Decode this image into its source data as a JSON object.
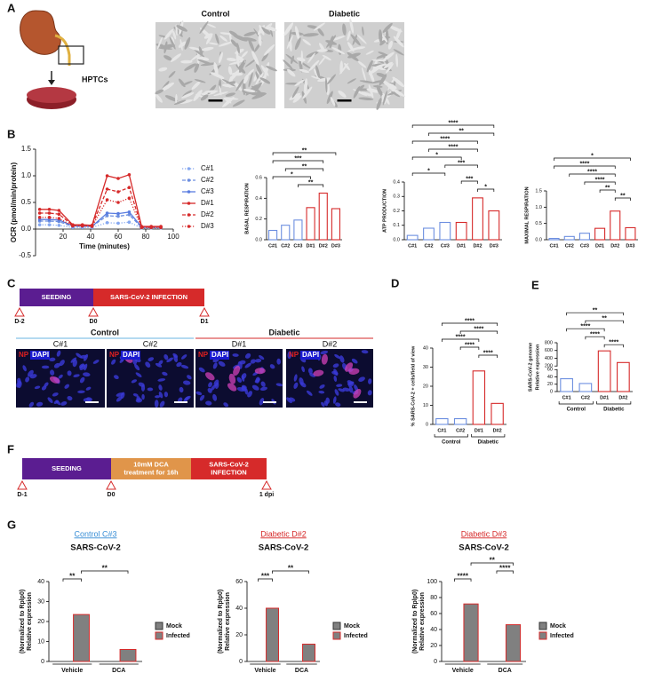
{
  "panel_labels": [
    "A",
    "B",
    "C",
    "D",
    "E",
    "F",
    "G"
  ],
  "panel_a": {
    "image_labels": [
      "Control",
      "Diabetic"
    ],
    "cell_label": "HPTCs"
  },
  "timeline_c": {
    "stages": [
      [
        "SEEDING"
      ],
      [
        "SARS-CoV-2 INFECTION"
      ]
    ],
    "days": [
      "D-2",
      "D0",
      "D1"
    ],
    "colors": [
      "#5b1d91",
      "#d62a2a"
    ]
  },
  "panel_c": {
    "groups": [
      "Control",
      "Diabetic"
    ],
    "fields": [
      "C#1",
      "C#2",
      "D#1",
      "D#2"
    ],
    "stain_labels": [
      "NP",
      "DAPI"
    ]
  },
  "timeline_f": {
    "stages": [
      [
        "SEEDING"
      ],
      [
        "10mM DCA",
        "treatment for 16h"
      ],
      [
        "SARS-CoV-2",
        "INFECTION"
      ]
    ],
    "days": [
      "D-1",
      "D0",
      "1 dpi"
    ],
    "colors": [
      "#5b1d91",
      "#e0954a",
      "#d62a2a"
    ]
  },
  "chart_data": [
    {
      "type": "line",
      "x_label": "Time (minutes)",
      "y_label": "OCR (pmol/min/protein)",
      "x": [
        3,
        10,
        17,
        27,
        34,
        41,
        52,
        60,
        68,
        77,
        84,
        91
      ],
      "xlim": [
        0,
        100
      ],
      "xticks": [
        20,
        40,
        60,
        80,
        100
      ],
      "ylim": [
        -0.5,
        1.5
      ],
      "yticks": [
        {
          "value": -0.5,
          "label": "-0.5"
        },
        {
          "value": 0,
          "label": "0.0"
        },
        {
          "value": 0.5,
          "label": "0.5"
        },
        {
          "value": 1,
          "label": "1.0"
        },
        {
          "value": 1.5,
          "label": "1.5"
        }
      ],
      "series": [
        {
          "name": "C#1",
          "color": "#86a8f0",
          "style": "dotted",
          "values": [
            0.08,
            0.08,
            0.07,
            0.03,
            0.03,
            0.03,
            0.12,
            0.11,
            0.13,
            0.02,
            0.02,
            0.02
          ]
        },
        {
          "name": "C#2",
          "color": "#6d8fe0",
          "style": "dashed",
          "values": [
            0.15,
            0.15,
            0.14,
            0.05,
            0.05,
            0.05,
            0.25,
            0.24,
            0.27,
            0.03,
            0.03,
            0.03
          ]
        },
        {
          "name": "C#3",
          "color": "#5a7de0",
          "style": "solid",
          "values": [
            0.18,
            0.18,
            0.17,
            0.06,
            0.06,
            0.05,
            0.3,
            0.29,
            0.32,
            0.04,
            0.04,
            0.04
          ]
        },
        {
          "name": "D#1",
          "color": "#d62a2a",
          "style": "solid",
          "values": [
            0.37,
            0.37,
            0.35,
            0.08,
            0.08,
            0.07,
            1.0,
            0.95,
            1.02,
            0.05,
            0.05,
            0.05
          ]
        },
        {
          "name": "D#2",
          "color": "#d62a2a",
          "style": "dashed",
          "values": [
            0.3,
            0.3,
            0.28,
            0.07,
            0.07,
            0.06,
            0.75,
            0.7,
            0.78,
            0.04,
            0.04,
            0.04
          ]
        },
        {
          "name": "D#3",
          "color": "#d62a2a",
          "style": "dotted",
          "values": [
            0.22,
            0.22,
            0.2,
            0.06,
            0.06,
            0.05,
            0.55,
            0.5,
            0.58,
            0.03,
            0.03,
            0.03
          ]
        }
      ]
    },
    {
      "type": "bar",
      "y_label": [
        "BASAL RESPIRATION"
      ],
      "categories": [
        "C#1",
        "C#2",
        "C#3",
        "D#1",
        "D#2",
        "D#3"
      ],
      "values": [
        0.09,
        0.14,
        0.19,
        0.31,
        0.45,
        0.3
      ],
      "colors": [
        "#6d8fe0",
        "#6d8fe0",
        "#6d8fe0",
        "#d62a2a",
        "#d62a2a",
        "#d62a2a"
      ],
      "ylim": [
        0,
        0.6
      ],
      "yticks": [
        {
          "value": 0,
          "label": "0.0"
        },
        0.2,
        0.4,
        0.6
      ],
      "brackets": [
        {
          "label": "**",
          "between": [
            2,
            4
          ]
        },
        {
          "label": "*",
          "between": [
            0,
            3
          ]
        },
        {
          "label": "**",
          "between": [
            1,
            4
          ]
        },
        {
          "label": "***",
          "between": [
            0,
            4
          ]
        },
        {
          "label": "**",
          "between": [
            0,
            5
          ]
        }
      ]
    },
    {
      "type": "bar",
      "y_label": [
        "ATP PRODUCTION"
      ],
      "categories": [
        "C#1",
        "C#2",
        "C#3",
        "D#1",
        "D#2",
        "D#3"
      ],
      "values": [
        0.03,
        0.08,
        0.12,
        0.12,
        0.29,
        0.2
      ],
      "colors": [
        "#6d8fe0",
        "#6d8fe0",
        "#6d8fe0",
        "#d62a2a",
        "#d62a2a",
        "#d62a2a"
      ],
      "ylim": [
        0,
        0.4
      ],
      "yticks": [
        {
          "value": 0,
          "label": "0.0"
        },
        0.1,
        0.2,
        0.3,
        0.4
      ],
      "brackets": [
        {
          "label": "*",
          "between": [
            4,
            5
          ]
        },
        {
          "label": "***",
          "between": [
            3,
            4
          ]
        },
        {
          "label": "*",
          "between": [
            0,
            2
          ]
        },
        {
          "label": "***",
          "between": [
            2,
            4
          ]
        },
        {
          "label": "*",
          "between": [
            0,
            3
          ]
        },
        {
          "label": "****",
          "between": [
            1,
            4
          ]
        },
        {
          "label": "****",
          "between": [
            0,
            4
          ]
        },
        {
          "label": "**",
          "between": [
            1,
            5
          ]
        },
        {
          "label": "****",
          "between": [
            0,
            5
          ]
        }
      ]
    },
    {
      "type": "bar",
      "y_label": [
        "MAXIMAL RESPIRATION"
      ],
      "categories": [
        "C#1",
        "C#2",
        "C#3",
        "D#1",
        "D#2",
        "D#3"
      ],
      "values": [
        0.04,
        0.1,
        0.2,
        0.35,
        0.88,
        0.37
      ],
      "colors": [
        "#6d8fe0",
        "#6d8fe0",
        "#6d8fe0",
        "#d62a2a",
        "#d62a2a",
        "#d62a2a"
      ],
      "ylim": [
        0,
        1.5
      ],
      "yticks": [
        {
          "value": 0,
          "label": "0.0"
        },
        0.5,
        {
          "value": 1,
          "label": "1.0"
        },
        1.5
      ],
      "brackets": [
        {
          "label": "**",
          "between": [
            4,
            5
          ]
        },
        {
          "label": "**",
          "between": [
            3,
            4
          ]
        },
        {
          "label": "****",
          "between": [
            2,
            4
          ]
        },
        {
          "label": "****",
          "between": [
            1,
            4
          ]
        },
        {
          "label": "****",
          "between": [
            0,
            4
          ]
        },
        {
          "label": "*",
          "between": [
            0,
            5
          ]
        }
      ]
    },
    {
      "type": "bar",
      "y_label": [
        "% SARS-CoV-2 + cells/field of view"
      ],
      "categories": [
        "C#1",
        "C#2",
        "D#1",
        "D#2"
      ],
      "values": [
        3,
        3,
        28,
        11
      ],
      "colors": [
        "#6d8fe0",
        "#6d8fe0",
        "#d62a2a",
        "#d62a2a"
      ],
      "ylim": [
        0,
        40
      ],
      "yticks": [
        0,
        10,
        20,
        30,
        40
      ],
      "groups": [
        {
          "label": "Control",
          "span": [
            0,
            1
          ]
        },
        {
          "label": "Diabetic",
          "span": [
            2,
            3
          ]
        }
      ],
      "brackets": [
        {
          "label": "****",
          "between": [
            2,
            3
          ]
        },
        {
          "label": "****",
          "between": [
            1,
            2
          ]
        },
        {
          "label": "****",
          "between": [
            0,
            2
          ]
        },
        {
          "label": "****",
          "between": [
            1,
            3
          ]
        },
        {
          "label": "****",
          "between": [
            0,
            3
          ]
        }
      ]
    },
    {
      "type": "bar",
      "y_label": [
        "Relative expression",
        "SARS-CoV-2 genome"
      ],
      "categories": [
        "C#1",
        "C#2",
        "D#1",
        "D#2"
      ],
      "values": [
        35,
        22,
        590,
        290
      ],
      "colors": [
        "#6d8fe0",
        "#6d8fe0",
        "#d62a2a",
        "#d62a2a"
      ],
      "ylim": [
        0,
        800
      ],
      "yticks": [
        0,
        20,
        40,
        60,
        200,
        400,
        600,
        800
      ],
      "axis_break": [
        60,
        200
      ],
      "groups": [
        {
          "label": "Control",
          "span": [
            0,
            1
          ]
        },
        {
          "label": "Diabetic",
          "span": [
            2,
            3
          ]
        }
      ],
      "brackets": [
        {
          "label": "****",
          "between": [
            2,
            3
          ]
        },
        {
          "label": "****",
          "between": [
            1,
            2
          ]
        },
        {
          "label": "****",
          "between": [
            0,
            2
          ]
        },
        {
          "label": "**",
          "between": [
            1,
            3
          ]
        },
        {
          "label": "**",
          "between": [
            0,
            3
          ]
        }
      ]
    },
    {
      "type": "grouped_bar",
      "header": "Control C#3",
      "header_color": "#3a8fd6",
      "title": "SARS-CoV-2",
      "y_label": [
        "Relative expression",
        "(Normalized to Rplp0)"
      ],
      "categories": [
        "Vehicle",
        "DCA"
      ],
      "ylim": [
        0,
        40
      ],
      "yticks": [
        0,
        10,
        20,
        30,
        40
      ],
      "series": [
        {
          "name": "Mock",
          "color": "#808080",
          "edge": "#333333",
          "values": [
            0,
            0
          ]
        },
        {
          "name": "Infected",
          "color": "#808080",
          "edge": "#d62a2a",
          "values": [
            23.5,
            6
          ]
        }
      ],
      "brackets": [
        {
          "label": "**",
          "between": [
            0,
            1
          ]
        },
        {
          "label": "**",
          "between": [
            1,
            3
          ]
        }
      ]
    },
    {
      "type": "grouped_bar",
      "header": "Diabetic D#2",
      "header_color": "#d62a2a",
      "title": "SARS-CoV-2",
      "y_label": [
        "Relative expression",
        "(Normalized to Rplp0)"
      ],
      "categories": [
        "Vehicle",
        "DCA"
      ],
      "ylim": [
        0,
        60
      ],
      "yticks": [
        0,
        20,
        40,
        60
      ],
      "series": [
        {
          "name": "Mock",
          "color": "#808080",
          "edge": "#333333",
          "values": [
            0,
            0
          ]
        },
        {
          "name": "Infected",
          "color": "#808080",
          "edge": "#d62a2a",
          "values": [
            40,
            13
          ]
        }
      ],
      "brackets": [
        {
          "label": "***",
          "between": [
            0,
            1
          ]
        },
        {
          "label": "**",
          "between": [
            1,
            3
          ]
        }
      ]
    },
    {
      "type": "grouped_bar",
      "header": "Diabetic D#3",
      "header_color": "#d62a2a",
      "title": "SARS-CoV-2",
      "y_label": [
        "Relative expression",
        "(Normalized to Rplp0)"
      ],
      "categories": [
        "Vehicle",
        "DCA"
      ],
      "ylim": [
        0,
        100
      ],
      "yticks": [
        0,
        20,
        40,
        60,
        80,
        100
      ],
      "series": [
        {
          "name": "Mock",
          "color": "#808080",
          "edge": "#333333",
          "values": [
            0,
            0
          ]
        },
        {
          "name": "Infected",
          "color": "#808080",
          "edge": "#d62a2a",
          "values": [
            72,
            46
          ]
        }
      ],
      "brackets": [
        {
          "label": "****",
          "between": [
            0,
            1
          ]
        },
        {
          "label": "****",
          "between": [
            2,
            3
          ]
        },
        {
          "label": "**",
          "between": [
            1,
            3
          ]
        }
      ]
    }
  ]
}
